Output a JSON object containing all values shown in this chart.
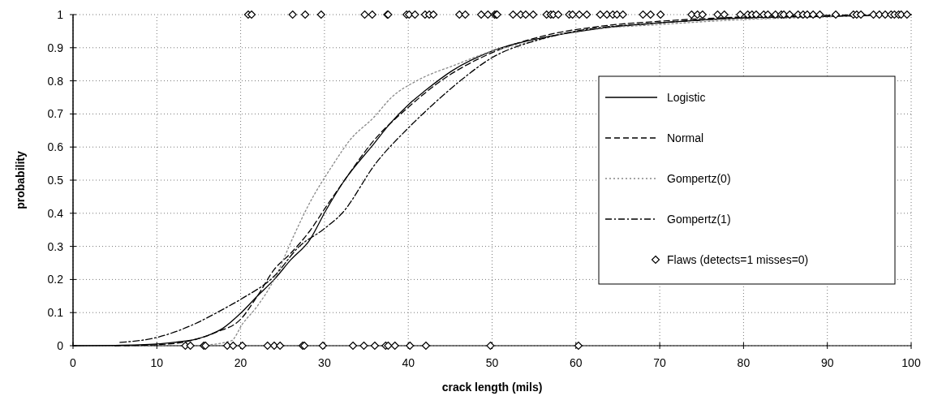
{
  "chart_data": {
    "type": "line",
    "xlabel": "crack length (mils)",
    "ylabel": "probability",
    "xlim": [
      0,
      100
    ],
    "ylim": [
      0,
      1
    ],
    "xticks": [
      0,
      10,
      20,
      30,
      40,
      50,
      60,
      70,
      80,
      90,
      100
    ],
    "yticks": [
      0,
      0.1,
      0.2,
      0.3,
      0.4,
      0.5,
      0.6,
      0.7,
      0.8,
      0.9,
      1
    ],
    "grid": true,
    "legend": "right",
    "series": [
      {
        "name": "Logistic",
        "color": "#000000",
        "line_style": "solid",
        "x": [
          0,
          5,
          10,
          12,
          14.7,
          16,
          17.9,
          20,
          22,
          24,
          26,
          28.2,
          30.2,
          32.4,
          35.9,
          37.8,
          40.1,
          42,
          45.2,
          50,
          56,
          63.4,
          70,
          80,
          90,
          100
        ],
        "values": [
          0,
          0.001,
          0.005,
          0.01,
          0.02,
          0.03,
          0.053,
          0.098,
          0.15,
          0.2,
          0.26,
          0.318,
          0.41,
          0.5,
          0.61,
          0.67,
          0.73,
          0.77,
          0.83,
          0.89,
          0.93,
          0.96,
          0.975,
          0.99,
          0.995,
          1
        ]
      },
      {
        "name": "Normal",
        "color": "#000000",
        "line_style": "dashed",
        "x": [
          5,
          10,
          14,
          17,
          20,
          22,
          24,
          26,
          28.2,
          30.2,
          32.4,
          35.9,
          40,
          43.9,
          50,
          56,
          63,
          70,
          80,
          90,
          100
        ],
        "values": [
          0,
          0.003,
          0.015,
          0.04,
          0.08,
          0.15,
          0.23,
          0.28,
          0.345,
          0.42,
          0.5,
          0.62,
          0.72,
          0.8,
          0.885,
          0.935,
          0.965,
          0.98,
          0.993,
          0.998,
          1
        ]
      },
      {
        "name": "Gompertz(0)",
        "color": "#888888",
        "line_style": "dotted",
        "x": [
          15,
          18.9,
          20.2,
          22,
          24,
          26.3,
          28,
          31.1,
          33,
          35.9,
          38,
          41,
          45.8,
          50,
          55,
          60,
          70,
          80,
          90,
          100
        ],
        "values": [
          0,
          0.015,
          0.065,
          0.12,
          0.2,
          0.33,
          0.42,
          0.55,
          0.62,
          0.69,
          0.75,
          0.8,
          0.85,
          0.89,
          0.92,
          0.95,
          0.97,
          0.985,
          0.993,
          1
        ]
      },
      {
        "name": "Gompertz(1)",
        "color": "#000000",
        "line_style": "dashdot",
        "x": [
          5.6,
          10,
          14,
          17.9,
          20,
          24,
          27,
          29.8,
          32.1,
          36.1,
          40.1,
          43,
          46.2,
          50,
          55,
          60,
          70,
          80,
          90,
          100
        ],
        "values": [
          0.01,
          0.025,
          0.06,
          0.11,
          0.14,
          0.21,
          0.3,
          0.35,
          0.4,
          0.55,
          0.66,
          0.73,
          0.8,
          0.87,
          0.92,
          0.95,
          0.975,
          0.99,
          0.995,
          1
        ]
      },
      {
        "name": "Flaws (detects=1 misses=0)",
        "type": "scatter",
        "marker": "diamond",
        "color": "#000000",
        "x": [
          13.4,
          14,
          15.6,
          15.8,
          18.4,
          19.1,
          20.2,
          23.2,
          24,
          24.7,
          27.4,
          27.6,
          29.8,
          33.4,
          34.7,
          36,
          37.3,
          37.6,
          38.4,
          40.2,
          42.1,
          49.8,
          60.3,
          20.9,
          21.3,
          26.2,
          27.7,
          29.6,
          34.8,
          35.7,
          37.5,
          37.6,
          39.8,
          40.1,
          40.8,
          42,
          42.5,
          43,
          46.1,
          46.8,
          48.7,
          49.5,
          50.3,
          50.5,
          50.6,
          52.5,
          53.4,
          54,
          54.9,
          56.5,
          57,
          57.3,
          57.9,
          59.2,
          59.6,
          60.4,
          61.3,
          62.9,
          63.7,
          64.4,
          64.9,
          65.6,
          68,
          68.9,
          70.1,
          73.8,
          74.5,
          75.1,
          76.9,
          77.7,
          79.6,
          80.5,
          81,
          81.5,
          82.4,
          82.9,
          83.8,
          84.5,
          84.8,
          85.5,
          86.5,
          87.1,
          87.6,
          88.3,
          89.1,
          91,
          93.1,
          93.5,
          94,
          95.5,
          96.2,
          96.9,
          97.6,
          98,
          98.5,
          98.8,
          99.5
        ],
        "values": [
          0,
          0,
          0,
          0,
          0,
          0,
          0,
          0,
          0,
          0,
          0,
          0,
          0,
          0,
          0,
          0,
          0,
          0,
          0,
          0,
          0,
          0,
          0,
          1,
          1,
          1,
          1,
          1,
          1,
          1,
          1,
          1,
          1,
          1,
          1,
          1,
          1,
          1,
          1,
          1,
          1,
          1,
          1,
          1,
          1,
          1,
          1,
          1,
          1,
          1,
          1,
          1,
          1,
          1,
          1,
          1,
          1,
          1,
          1,
          1,
          1,
          1,
          1,
          1,
          1,
          1,
          1,
          1,
          1,
          1,
          1,
          1,
          1,
          1,
          1,
          1,
          1,
          1,
          1,
          1,
          1,
          1,
          1,
          1,
          1,
          1,
          1,
          1,
          1,
          1,
          1,
          1,
          1,
          1,
          1,
          1,
          1
        ]
      }
    ]
  }
}
